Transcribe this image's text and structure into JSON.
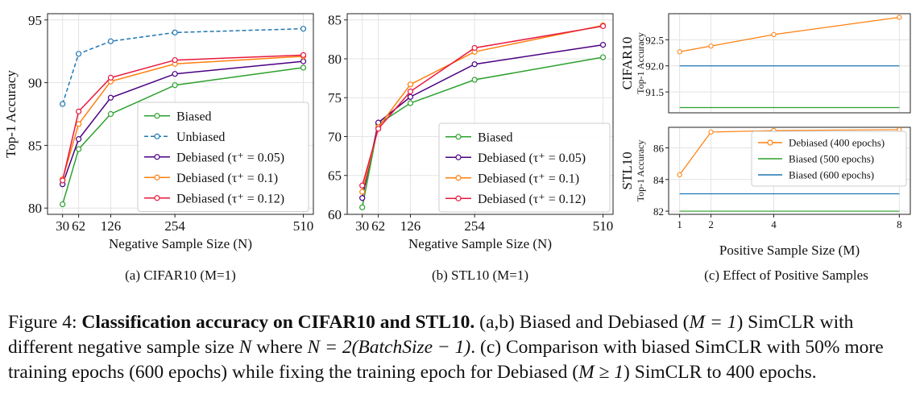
{
  "chart_data": [
    {
      "type": "line",
      "subtitle": "(a) CIFAR10 (M=1)",
      "xlabel": "Negative Sample Size (N)",
      "ylabel": "Top-1 Accuracy",
      "x": [
        30,
        62,
        126,
        254,
        510
      ],
      "xticks": [
        "30",
        "62",
        "126",
        "254",
        "510"
      ],
      "xlim": [
        0,
        530
      ],
      "ylim": [
        79.5,
        95.5
      ],
      "yticks": [
        80,
        85,
        90,
        95
      ],
      "grid": true,
      "legend_position": "lower-right",
      "series": [
        {
          "name": "Biased",
          "color": "#2ca02c",
          "dashed": false,
          "values": [
            80.3,
            84.7,
            87.5,
            89.8,
            91.2
          ]
        },
        {
          "name": "Unbiased",
          "color": "#1f77b4",
          "dashed": true,
          "values": [
            88.3,
            92.3,
            93.3,
            94.0,
            94.3
          ]
        },
        {
          "name": "Debiased (τ⁺ = 0.05)",
          "color": "#4b0082",
          "dashed": false,
          "values": [
            81.9,
            85.5,
            88.8,
            90.7,
            91.7
          ]
        },
        {
          "name": "Debiased (τ⁺ = 0.1)",
          "color": "#ff7f0e",
          "dashed": false,
          "values": [
            82.3,
            86.7,
            90.1,
            91.5,
            92.1
          ]
        },
        {
          "name": "Debiased (τ⁺ = 0.12)",
          "color": "#e8173d",
          "dashed": false,
          "values": [
            82.2,
            87.7,
            90.4,
            91.8,
            92.2
          ]
        }
      ]
    },
    {
      "type": "line",
      "subtitle": "(b) STL10 (M=1)",
      "xlabel": "Negative Sample Size (N)",
      "ylabel": "",
      "x": [
        30,
        62,
        126,
        254,
        510
      ],
      "xticks": [
        "30",
        "62",
        "126",
        "254",
        "510"
      ],
      "xlim": [
        0,
        530
      ],
      "ylim": [
        60,
        85.8
      ],
      "yticks": [
        60,
        65,
        70,
        75,
        80,
        85
      ],
      "grid": true,
      "legend_position": "lower-right",
      "series": [
        {
          "name": "Biased",
          "color": "#2ca02c",
          "dashed": false,
          "values": [
            60.9,
            71.6,
            74.3,
            77.3,
            80.2
          ]
        },
        {
          "name": "Debiased (τ⁺ = 0.05)",
          "color": "#4b0082",
          "dashed": false,
          "values": [
            62.1,
            71.8,
            75.1,
            79.3,
            81.8
          ]
        },
        {
          "name": "Debiased (τ⁺ = 0.1)",
          "color": "#ff7f0e",
          "dashed": false,
          "values": [
            62.9,
            71.2,
            76.7,
            80.9,
            84.3
          ]
        },
        {
          "name": "Debiased (τ⁺ = 0.12)",
          "color": "#e8173d",
          "dashed": false,
          "values": [
            63.7,
            71.0,
            75.8,
            81.4,
            84.2
          ]
        }
      ]
    },
    {
      "type": "line",
      "subtitle": "(c) Effect of Positive Samples",
      "xlabel": "Positive Sample Size (M)",
      "panels": [
        {
          "dataset": "CIFAR10",
          "ylabel": "Top-1 Accuracy",
          "ylim": [
            91.1,
            93.0
          ],
          "yticks": [
            91.5,
            92.0,
            92.5
          ],
          "series": [
            {
              "name": "Debiased (400 epochs)",
              "color": "#ff7f0e",
              "markers": true,
              "x": [
                1,
                2,
                4,
                8
              ],
              "values": [
                92.27,
                92.38,
                92.6,
                92.93
              ]
            },
            {
              "name": "Biased (500 epochs)",
              "color": "#2ca02c",
              "markers": false,
              "x": [
                1,
                8
              ],
              "values": [
                91.2,
                91.2
              ]
            },
            {
              "name": "Biased (600 epochs)",
              "color": "#1f77b4",
              "markers": false,
              "x": [
                1,
                8
              ],
              "values": [
                92.0,
                92.0
              ]
            }
          ]
        },
        {
          "dataset": "STL10",
          "ylabel": "Top-1 Accuracy",
          "ylim": [
            81.8,
            87.3
          ],
          "yticks": [
            82,
            84,
            86
          ],
          "legend_position": "upper-right",
          "series": [
            {
              "name": "Debiased (400 epochs)",
              "color": "#ff7f0e",
              "markers": true,
              "x": [
                1,
                2,
                4,
                8
              ],
              "values": [
                84.3,
                87.0,
                87.1,
                87.15
              ]
            },
            {
              "name": "Biased (500 epochs)",
              "color": "#2ca02c",
              "markers": false,
              "x": [
                1,
                8
              ],
              "values": [
                82.0,
                82.0
              ]
            },
            {
              "name": "Biased (600 epochs)",
              "color": "#1f77b4",
              "markers": false,
              "x": [
                1,
                8
              ],
              "values": [
                83.1,
                83.1
              ]
            }
          ]
        }
      ],
      "x": [
        1,
        2,
        4,
        8
      ],
      "xticks": [
        "1",
        "2",
        "4",
        "8"
      ],
      "xlim": [
        0.65,
        8.35
      ],
      "grid": true
    }
  ],
  "caption": {
    "prefix": "Figure 4: ",
    "bold": "Classification accuracy on CIFAR10 and STL10.",
    "text_1": " (a,b) Biased and Debiased (",
    "math_1": "M = 1",
    "text_2": ") SimCLR with different negative sample size ",
    "math_2": "N",
    "text_3": " where ",
    "math_3": "N = 2(BatchSize − 1)",
    "text_4": ". (c) Comparison with biased SimCLR with 50% more training epochs (600 epochs) while fixing the training epoch for Debiased (",
    "math_4": "M ≥ 1",
    "text_5": ") SimCLR to 400 epochs."
  }
}
